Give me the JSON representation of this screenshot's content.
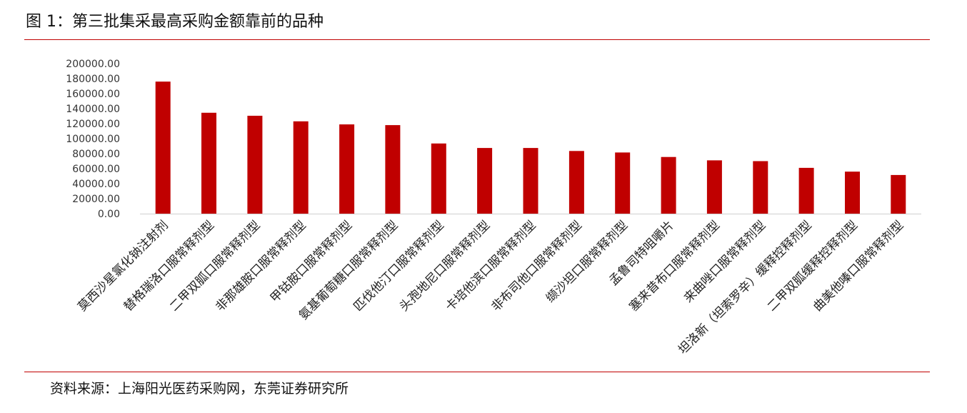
{
  "header": {
    "figure_title": "图 1：第三批集采最高采购金额靠前的品种"
  },
  "footer": {
    "source": "资料来源：上海阳光医药采购网，东莞证券研究所"
  },
  "colors": {
    "bar": "#c00000",
    "rule": "#c00000"
  },
  "chart_data": {
    "type": "bar",
    "title": "",
    "xlabel": "",
    "ylabel": "",
    "ylim": [
      0,
      200000
    ],
    "yticks": [
      "0.00",
      "20000.00",
      "40000.00",
      "60000.00",
      "80000.00",
      "100000.00",
      "120000.00",
      "140000.00",
      "160000.00",
      "180000.00",
      "200000.00"
    ],
    "categories": [
      "莫西沙星氯化钠注射剂",
      "替格瑞洛口服常释剂型",
      "二甲双胍口服常释剂型",
      "非那雄胺口服常释剂型",
      "甲钴胺口服常释剂型",
      "氨基葡萄糖口服常释剂型",
      "匹伐他汀口服常释剂型",
      "头孢地尼口服常释剂型",
      "卡培他滨口服常释剂型",
      "非布司他口服常释剂型",
      "缬沙坦口服常释剂型",
      "孟鲁司特咀嚼片",
      "塞来昔布口服常释剂型",
      "来曲唑口服常释剂型",
      "坦洛新（坦索罗辛）缓释控释剂型",
      "二甲双胍缓释控释剂型",
      "曲美他嗪口服常释剂型"
    ],
    "values": [
      176000,
      134500,
      130500,
      123000,
      119000,
      118000,
      93500,
      87500,
      87500,
      83500,
      81500,
      75500,
      71000,
      70000,
      61000,
      56000,
      51500
    ],
    "grid": false,
    "legend": "none"
  }
}
